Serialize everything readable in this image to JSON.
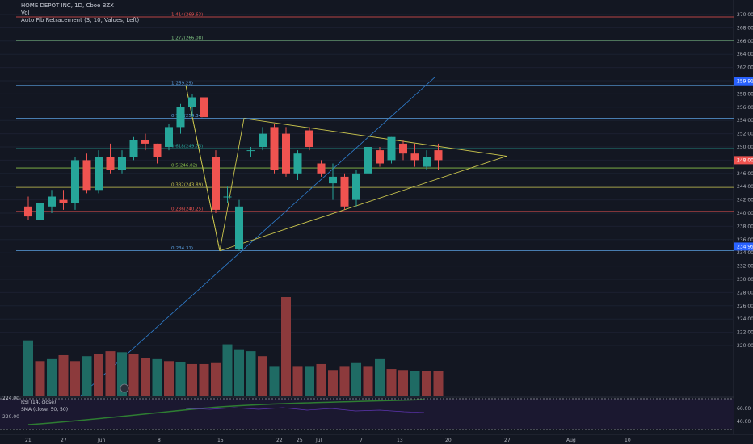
{
  "header": {
    "symbol_line": "HOME DEPOT INC, 1D, Cboe BZX",
    "vol_label": "Vol",
    "fib_label": "Auto Fib Retracement (3, 10, Values, Left)",
    "rsi_label": "RSI (14, close)",
    "sma_label": "SMA (close, 50, 50)"
  },
  "colors": {
    "background": "#131722",
    "up": "#26a69a",
    "down": "#ef5350",
    "up_volume": "#1f6b64",
    "down_volume": "#8c3a3c",
    "triangle": "#c9c44d",
    "trendline": "#2f7fd0",
    "rsi_band": "#7e57c2"
  },
  "chart_data": [
    {
      "type": "candlestick",
      "y_axis_labels": [
        "270.00",
        "268.00",
        "266.00",
        "264.00",
        "262.00",
        "260.00",
        "258.00",
        "256.00",
        "254.00",
        "252.00",
        "250.00",
        "248.00",
        "246.00",
        "244.00",
        "242.00",
        "240.00",
        "238.00",
        "236.00",
        "234.00",
        "232.00",
        "230.00",
        "228.00",
        "226.00",
        "224.00",
        "222.00",
        "220.00"
      ],
      "x_axis_labels": [
        "21",
        "27",
        "Jun",
        "8",
        "15",
        "22",
        "25",
        "Jul",
        "7",
        "13",
        "20",
        "27",
        "Aug",
        "10"
      ],
      "price_badges": [
        "259.91",
        "248.00",
        "234.95"
      ],
      "fib_levels": [
        {
          "label": "1.414(269.63)",
          "price": 269.63,
          "color": "#ef5350"
        },
        {
          "label": "1.272(266.08)",
          "price": 266.08,
          "color": "#81c784"
        },
        {
          "label": "1(259.29)",
          "price": 259.29,
          "color": "#5a9fe0"
        },
        {
          "label": "0.786(254.34)",
          "price": 254.34,
          "color": "#5a9fe0"
        },
        {
          "label": "0.618(249.75)",
          "price": 249.75,
          "color": "#26a69a"
        },
        {
          "label": "0.5(246.82)",
          "price": 246.82,
          "color": "#8bc34a"
        },
        {
          "label": "0.382(243.89)",
          "price": 243.89,
          "color": "#c9c44d"
        },
        {
          "label": "0.236(240.25)",
          "price": 240.25,
          "color": "#ef5350"
        },
        {
          "label": "0(234.31)",
          "price": 234.31,
          "color": "#5a9fe0"
        }
      ],
      "candles": [
        {
          "o": 241.0,
          "h": 242.5,
          "l": 239.0,
          "c": 239.5
        },
        {
          "o": 239.0,
          "h": 242.0,
          "l": 237.5,
          "c": 241.5
        },
        {
          "o": 241.0,
          "h": 243.5,
          "l": 240.0,
          "c": 242.5
        },
        {
          "o": 242.0,
          "h": 243.5,
          "l": 240.5,
          "c": 241.5
        },
        {
          "o": 241.5,
          "h": 248.5,
          "l": 240.5,
          "c": 248.0
        },
        {
          "o": 248.0,
          "h": 249.0,
          "l": 243.0,
          "c": 243.5
        },
        {
          "o": 243.5,
          "h": 249.5,
          "l": 243.0,
          "c": 248.5
        },
        {
          "o": 248.5,
          "h": 250.5,
          "l": 246.0,
          "c": 246.5
        },
        {
          "o": 246.5,
          "h": 249.5,
          "l": 246.0,
          "c": 248.5
        },
        {
          "o": 248.5,
          "h": 251.5,
          "l": 248.0,
          "c": 251.0
        },
        {
          "o": 251.0,
          "h": 252.0,
          "l": 249.5,
          "c": 250.5
        },
        {
          "o": 250.5,
          "h": 250.5,
          "l": 247.5,
          "c": 248.5
        },
        {
          "o": 250.0,
          "h": 253.5,
          "l": 249.5,
          "c": 253.0
        },
        {
          "o": 253.0,
          "h": 256.5,
          "l": 252.0,
          "c": 256.0
        },
        {
          "o": 256.0,
          "h": 258.0,
          "l": 254.5,
          "c": 257.5
        },
        {
          "o": 257.5,
          "h": 259.3,
          "l": 254.0,
          "c": 254.5
        },
        {
          "o": 248.5,
          "h": 249.5,
          "l": 240.0,
          "c": 240.5
        },
        {
          "o": 242.5,
          "h": 244.0,
          "l": 241.5,
          "c": 242.5
        },
        {
          "o": 234.5,
          "h": 242.0,
          "l": 234.3,
          "c": 241.0
        },
        {
          "o": 249.5,
          "h": 250.0,
          "l": 248.5,
          "c": 249.5
        },
        {
          "o": 250.0,
          "h": 253.0,
          "l": 249.5,
          "c": 252.0
        },
        {
          "o": 253.0,
          "h": 253.5,
          "l": 246.0,
          "c": 246.5
        },
        {
          "o": 252.0,
          "h": 253.0,
          "l": 245.5,
          "c": 246.0
        },
        {
          "o": 246.0,
          "h": 249.5,
          "l": 245.0,
          "c": 249.0
        },
        {
          "o": 252.5,
          "h": 253.0,
          "l": 249.5,
          "c": 250.0
        },
        {
          "o": 247.5,
          "h": 248.0,
          "l": 245.5,
          "c": 246.0
        },
        {
          "o": 244.5,
          "h": 247.5,
          "l": 242.0,
          "c": 245.5
        },
        {
          "o": 245.5,
          "h": 246.0,
          "l": 240.5,
          "c": 241.0
        },
        {
          "o": 242.0,
          "h": 246.5,
          "l": 241.0,
          "c": 246.0
        },
        {
          "o": 246.0,
          "h": 250.5,
          "l": 245.5,
          "c": 250.0
        },
        {
          "o": 249.5,
          "h": 250.0,
          "l": 247.0,
          "c": 247.5
        },
        {
          "o": 248.0,
          "h": 251.5,
          "l": 247.5,
          "c": 251.5
        },
        {
          "o": 250.5,
          "h": 251.0,
          "l": 248.0,
          "c": 249.0
        },
        {
          "o": 249.0,
          "h": 250.5,
          "l": 247.0,
          "c": 248.0
        },
        {
          "o": 247.0,
          "h": 249.5,
          "l": 246.5,
          "c": 248.5
        },
        {
          "o": 249.5,
          "h": 250.5,
          "l": 246.5,
          "c": 248.0
        }
      ],
      "volume_up": [
        true,
        false,
        true,
        false,
        false,
        true,
        false,
        false,
        true,
        false,
        false,
        true,
        false,
        true,
        false,
        false,
        false,
        true,
        true,
        true,
        false,
        true,
        false,
        false,
        true,
        false,
        false,
        false,
        true,
        false,
        true,
        false,
        false,
        true,
        false,
        false
      ],
      "volume_levels": [
        0.56,
        0.35,
        0.37,
        0.41,
        0.35,
        0.4,
        0.42,
        0.45,
        0.44,
        0.42,
        0.38,
        0.37,
        0.35,
        0.34,
        0.32,
        0.32,
        0.33,
        0.52,
        0.47,
        0.45,
        0.4,
        0.3,
        1.0,
        0.3,
        0.3,
        0.32,
        0.26,
        0.3,
        0.33,
        0.3,
        0.37,
        0.27,
        0.26,
        0.25,
        0.25,
        0.25
      ]
    },
    {
      "type": "line",
      "title": "RSI (14, close)",
      "y_axis_labels": [
        "60.00",
        "40.00"
      ],
      "left_axis_labels": [
        "224.00",
        "220.00"
      ]
    }
  ]
}
